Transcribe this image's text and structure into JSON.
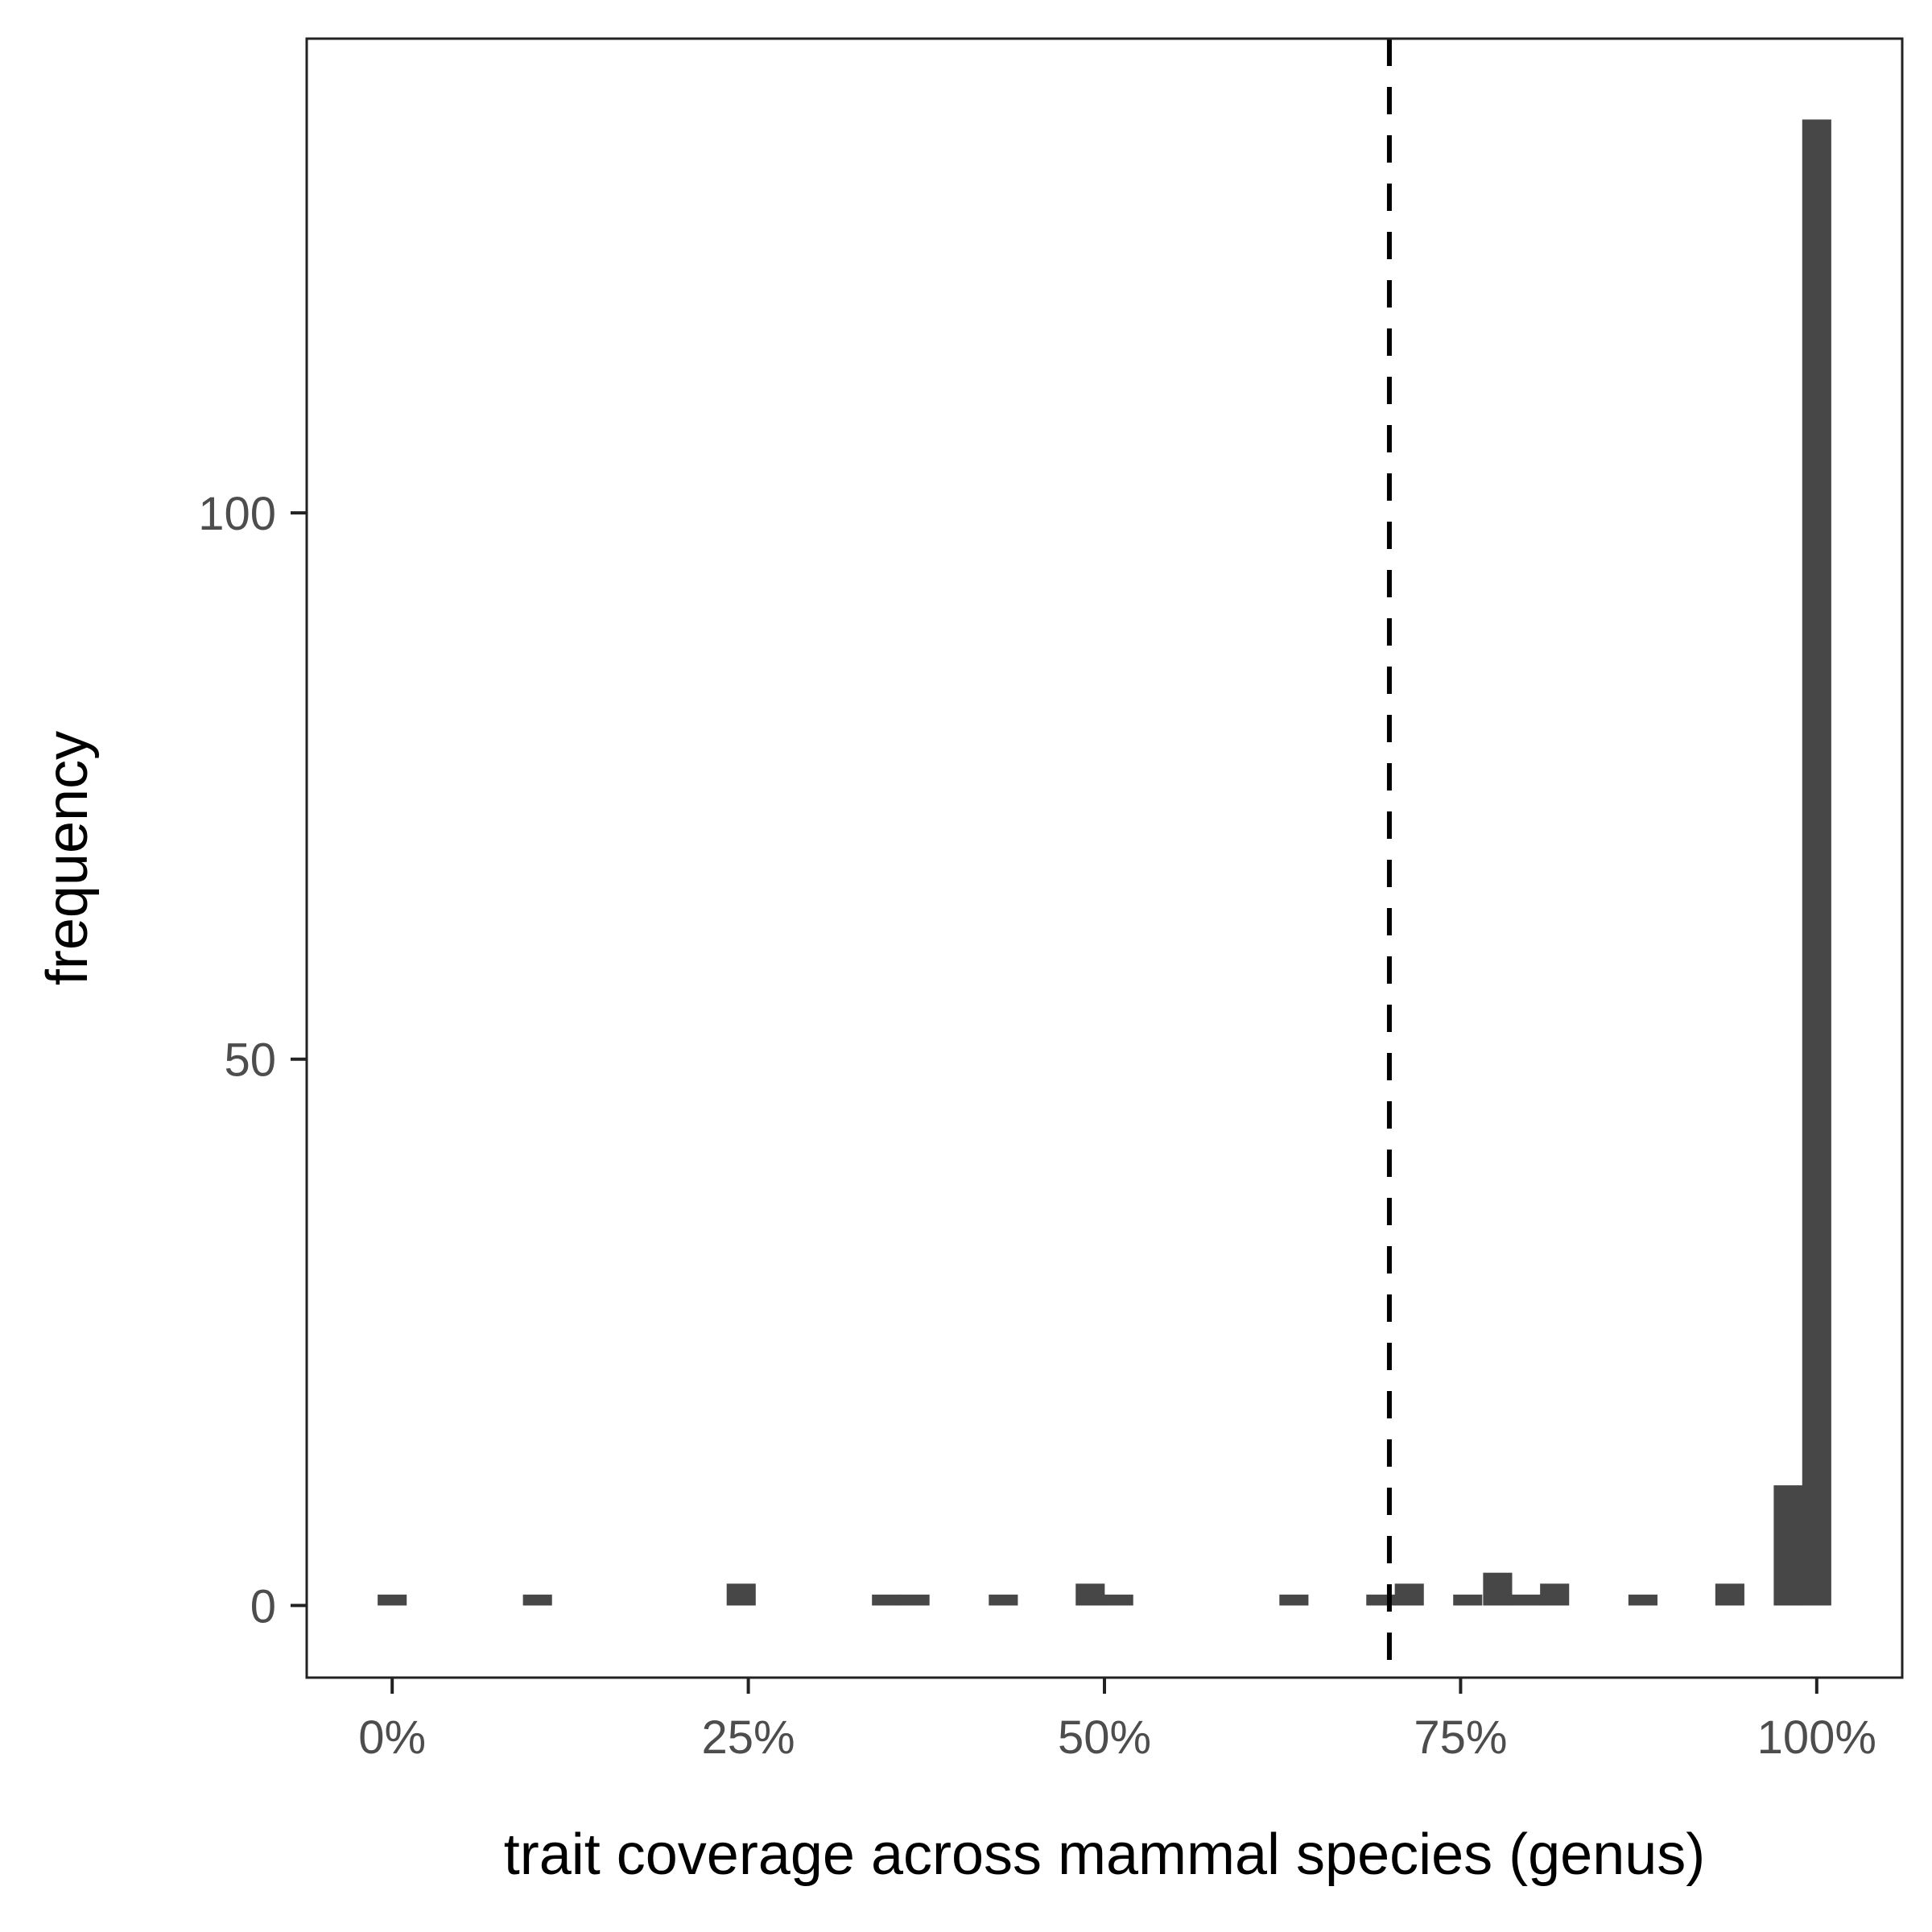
{
  "chart_data": {
    "type": "bar",
    "xlabel": "trait coverage across mammal species (genus)",
    "ylabel": "frequency",
    "x_ticks": [
      {
        "value": 0,
        "label": "0%"
      },
      {
        "value": 0.25,
        "label": "25%"
      },
      {
        "value": 0.5,
        "label": "50%"
      },
      {
        "value": 0.75,
        "label": "75%"
      },
      {
        "value": 1.0,
        "label": "100%"
      }
    ],
    "y_ticks": [
      {
        "value": 0,
        "label": "0"
      },
      {
        "value": 50,
        "label": "50"
      },
      {
        "value": 100,
        "label": "100"
      }
    ],
    "xlim": [
      -0.06,
      1.06
    ],
    "ylim": [
      -6.6,
      143.4
    ],
    "bin_width": 0.0204,
    "bins": [
      {
        "x": 0.0,
        "count": 1
      },
      {
        "x": 0.102,
        "count": 1
      },
      {
        "x": 0.245,
        "count": 2
      },
      {
        "x": 0.347,
        "count": 1
      },
      {
        "x": 0.367,
        "count": 1
      },
      {
        "x": 0.429,
        "count": 1
      },
      {
        "x": 0.49,
        "count": 2
      },
      {
        "x": 0.51,
        "count": 1
      },
      {
        "x": 0.633,
        "count": 1
      },
      {
        "x": 0.694,
        "count": 1
      },
      {
        "x": 0.714,
        "count": 2
      },
      {
        "x": 0.755,
        "count": 1
      },
      {
        "x": 0.776,
        "count": 3
      },
      {
        "x": 0.796,
        "count": 1
      },
      {
        "x": 0.816,
        "count": 2
      },
      {
        "x": 0.878,
        "count": 1
      },
      {
        "x": 0.939,
        "count": 2
      },
      {
        "x": 0.98,
        "count": 11
      },
      {
        "x": 1.0,
        "count": 136
      }
    ],
    "reference_line": {
      "x": 0.7,
      "style": "dashed"
    },
    "grid": false,
    "colors": {
      "bar": "#474747",
      "axis": "#222222",
      "reference_line": "#000000"
    }
  }
}
